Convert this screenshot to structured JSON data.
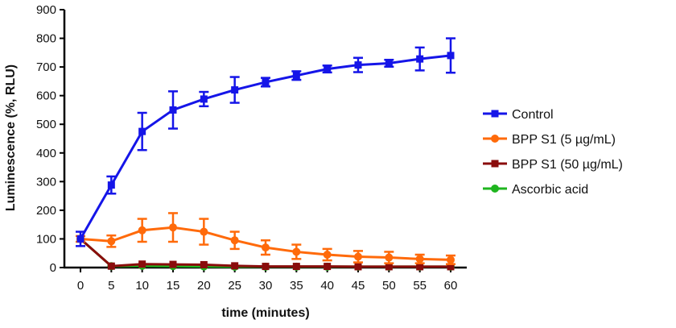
{
  "chart_data": {
    "type": "line",
    "title": "",
    "xlabel": "time (minutes)",
    "ylabel": "Luminescence (%, RLU)",
    "xlim": [
      0,
      60
    ],
    "ylim": [
      0,
      900
    ],
    "x_ticks": [
      "0",
      "5",
      "10",
      "15",
      "20",
      "25",
      "30",
      "35",
      "40",
      "45",
      "50",
      "55",
      "60"
    ],
    "y_ticks": [
      "0",
      "100",
      "200",
      "300",
      "400",
      "500",
      "600",
      "700",
      "800",
      "900"
    ],
    "x": [
      0,
      5,
      10,
      15,
      20,
      25,
      30,
      35,
      40,
      45,
      50,
      55,
      60
    ],
    "grid": false,
    "legend_position": "right",
    "series": [
      {
        "name": "Control",
        "color": "#1515e8",
        "marker": "square",
        "values": [
          100,
          288,
          475,
          550,
          588,
          620,
          647,
          670,
          693,
          707,
          713,
          728,
          740
        ],
        "errors": [
          25,
          30,
          65,
          65,
          25,
          45,
          15,
          15,
          12,
          25,
          12,
          40,
          60
        ]
      },
      {
        "name": "BPP S1 (5 µg/mL)",
        "color": "#ff6a0a",
        "marker": "circle",
        "values": [
          100,
          92,
          130,
          140,
          125,
          95,
          70,
          55,
          45,
          38,
          35,
          30,
          27
        ],
        "errors": [
          10,
          20,
          40,
          50,
          45,
          30,
          25,
          25,
          20,
          20,
          20,
          15,
          15
        ]
      },
      {
        "name": "BPP S1 (50 µg/mL)",
        "color": "#8a0c0c",
        "marker": "square",
        "values": [
          100,
          5,
          12,
          11,
          10,
          6,
          4,
          4,
          4,
          3,
          3,
          3,
          3
        ],
        "errors": [
          0,
          0,
          0,
          0,
          0,
          0,
          0,
          0,
          0,
          0,
          0,
          0,
          0
        ]
      },
      {
        "name": "Ascorbic acid",
        "color": "#1fb51f",
        "marker": "circle",
        "values": [
          100,
          5,
          6,
          5,
          4,
          3,
          3,
          3,
          3,
          3,
          3,
          3,
          3
        ],
        "errors": [
          0,
          0,
          0,
          0,
          0,
          0,
          0,
          0,
          0,
          0,
          0,
          0,
          0
        ]
      }
    ]
  }
}
